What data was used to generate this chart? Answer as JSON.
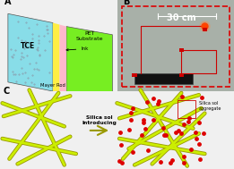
{
  "bg_color": "#f0f0f0",
  "panel_A": {
    "label": "A",
    "tce_color": "#88dde8",
    "tce_dot_color": "#b0b0b0",
    "substrate_color": "#77ee22",
    "ink_color": "#ffb8cc",
    "yellow_color": "#ffee44",
    "tce_text": "TCE",
    "substrate_text": "PET\nSubstrate",
    "ink_text": "Ink",
    "rod_text": "Mayer Rod"
  },
  "panel_B": {
    "label": "B",
    "border_color": "#dd0000",
    "scale_text": "30 cm",
    "photo_bg": "#909898",
    "photo_inner": "#a8b0a8"
  },
  "panel_C": {
    "label": "C",
    "nw_color": "#ccee00",
    "nw_dark": "#999900",
    "dot_color": "#dd0000",
    "arrow_text": "Silica sol\nIntroducing",
    "agg_text": "Silica sol\naggregate",
    "bg_color": "#ffffff"
  }
}
